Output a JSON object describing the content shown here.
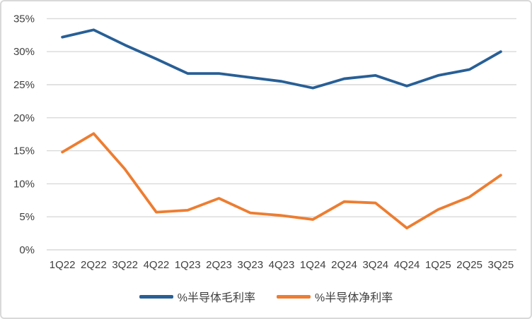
{
  "chart_data": {
    "type": "line",
    "categories": [
      "1Q22",
      "2Q22",
      "3Q22",
      "4Q22",
      "1Q23",
      "2Q23",
      "3Q23",
      "4Q23",
      "1Q24",
      "2Q24",
      "3Q24",
      "4Q24",
      "1Q25",
      "2Q25",
      "3Q25"
    ],
    "series": [
      {
        "name": "%半导体毛利率",
        "color": "#285F96",
        "values": [
          32.2,
          33.3,
          31.0,
          28.9,
          26.7,
          26.7,
          26.1,
          25.5,
          24.5,
          25.9,
          26.4,
          24.8,
          26.4,
          27.3,
          30.0
        ]
      },
      {
        "name": "%半导体净利率",
        "color": "#ED7D31",
        "values": [
          14.8,
          17.6,
          12.2,
          5.7,
          6.0,
          7.8,
          5.6,
          5.2,
          4.6,
          7.3,
          7.1,
          3.3,
          6.1,
          8.0,
          11.3
        ]
      }
    ],
    "title": "",
    "xlabel": "",
    "ylabel": "",
    "ylim": [
      0,
      35
    ],
    "ytick_step": 5,
    "ytick_labels": [
      "0%",
      "5%",
      "10%",
      "15%",
      "20%",
      "25%",
      "30%",
      "35%"
    ],
    "grid": true,
    "gridline_color": "#d9d9d9",
    "legend_position": "bottom"
  }
}
